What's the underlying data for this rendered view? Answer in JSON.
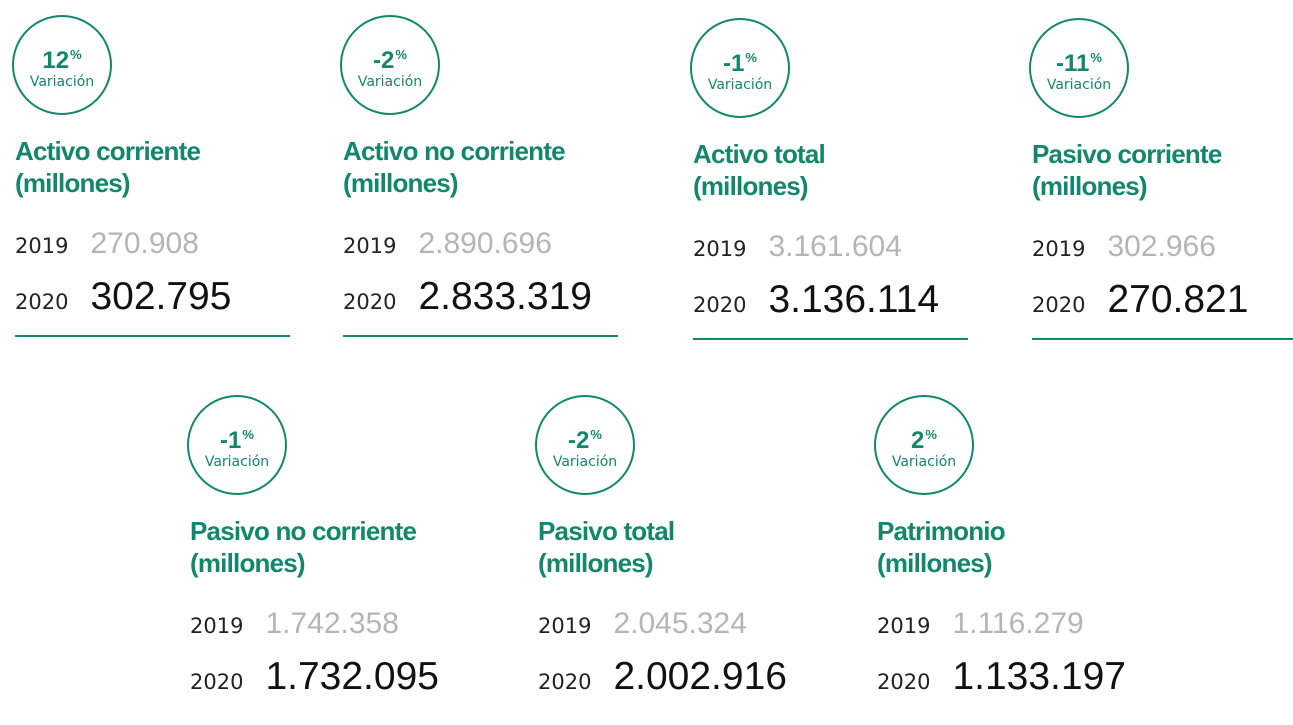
{
  "cards": [
    {
      "variation": "12",
      "variation_unit": "%",
      "variation_label": "Variación",
      "title": "Activo corriente",
      "title_unit": "(millones)",
      "rows": [
        {
          "year": "2019",
          "value": "270.908"
        },
        {
          "year": "2020",
          "value": "302.795"
        }
      ]
    },
    {
      "variation": "-2",
      "variation_unit": "%",
      "variation_label": "Variación",
      "title": "Activo no corriente",
      "title_unit": "(millones)",
      "rows": [
        {
          "year": "2019",
          "value": "2.890.696"
        },
        {
          "year": "2020",
          "value": "2.833.319"
        }
      ]
    },
    {
      "variation": "-1",
      "variation_unit": "%",
      "variation_label": "Variación",
      "title": "Activo total",
      "title_unit": "(millones)",
      "rows": [
        {
          "year": "2019",
          "value": "3.161.604"
        },
        {
          "year": "2020",
          "value": "3.136.114"
        }
      ]
    },
    {
      "variation": "-11",
      "variation_unit": "%",
      "variation_label": "Variación",
      "title": "Pasivo corriente",
      "title_unit": "(millones)",
      "rows": [
        {
          "year": "2019",
          "value": "302.966"
        },
        {
          "year": "2020",
          "value": "270.821"
        }
      ]
    },
    {
      "variation": "-1",
      "variation_unit": "%",
      "variation_label": "Variación",
      "title": "Pasivo no corriente",
      "title_unit": "(millones)",
      "rows": [
        {
          "year": "2019",
          "value": "1.742.358"
        },
        {
          "year": "2020",
          "value": "1.732.095"
        }
      ]
    },
    {
      "variation": "-2",
      "variation_unit": "%",
      "variation_label": "Variación",
      "title": "Pasivo total",
      "title_unit": "(millones)",
      "rows": [
        {
          "year": "2019",
          "value": "2.045.324"
        },
        {
          "year": "2020",
          "value": "2.002.916"
        }
      ]
    },
    {
      "variation": "2",
      "variation_unit": "%",
      "variation_label": "Variación",
      "title": "Patrimonio",
      "title_unit": "(millones)",
      "rows": [
        {
          "year": "2019",
          "value": "1.116.279"
        },
        {
          "year": "2020",
          "value": "1.133.197"
        }
      ]
    }
  ]
}
